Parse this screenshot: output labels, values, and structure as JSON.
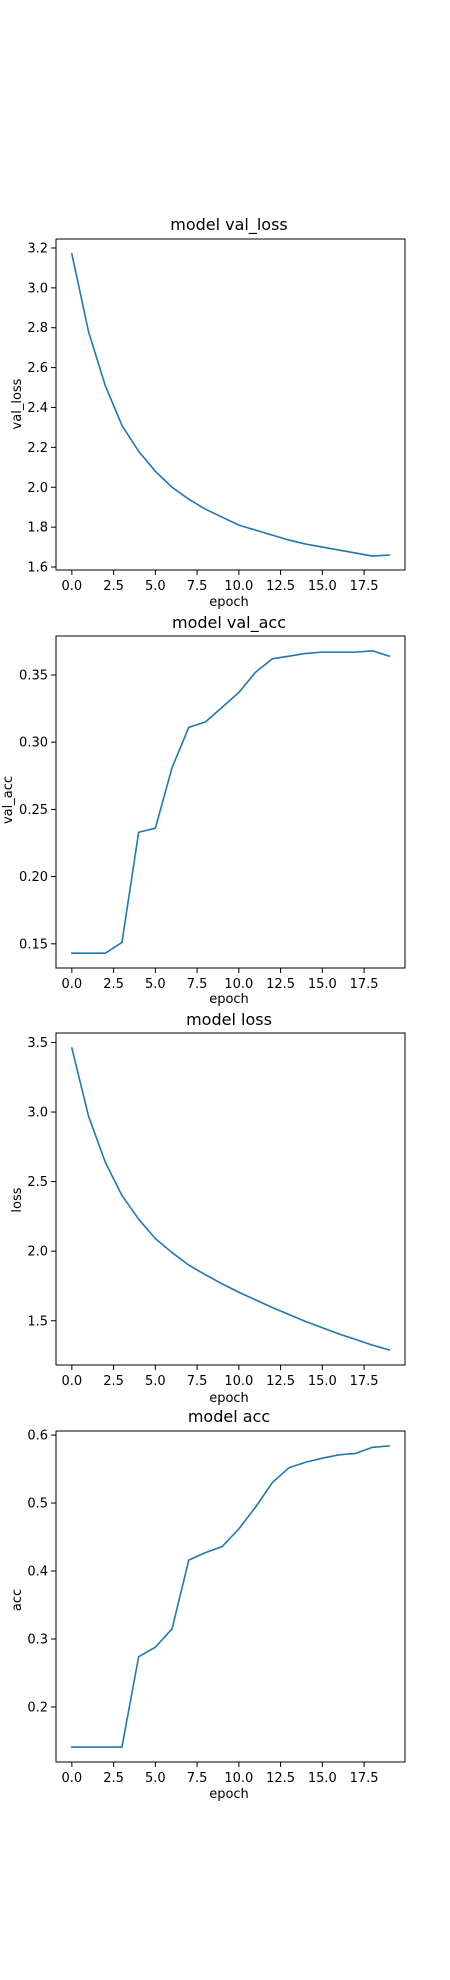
{
  "figure": {
    "background": "#ffffff"
  },
  "chart_data": [
    {
      "type": "line",
      "title": "model val_loss",
      "xlabel": "epoch",
      "ylabel": "val_loss",
      "x": [
        0,
        1,
        2,
        3,
        4,
        5,
        6,
        7,
        8,
        9,
        10,
        11,
        12,
        13,
        14,
        15,
        16,
        17,
        18,
        19
      ],
      "series": [
        {
          "name": "",
          "color": "#1f77b4",
          "values": [
            3.17,
            2.78,
            2.51,
            2.31,
            2.18,
            2.08,
            2.0,
            1.94,
            1.89,
            1.85,
            1.81,
            1.785,
            1.76,
            1.735,
            1.715,
            1.7,
            1.685,
            1.67,
            1.655,
            1.66
          ]
        }
      ],
      "xlim": [
        -0.95,
        19.95
      ],
      "ylim": [
        1.585,
        3.245
      ],
      "xticks": [
        0,
        2.5,
        5,
        7.5,
        10,
        12.5,
        15,
        17.5
      ],
      "xticklabels": [
        "0.0",
        "2.5",
        "5.0",
        "7.5",
        "10.0",
        "12.5",
        "15.0",
        "17.5"
      ],
      "yticks": [
        1.6,
        1.8,
        2.0,
        2.2,
        2.4,
        2.6,
        2.8,
        3.0,
        3.2
      ],
      "yticklabels": [
        "1.6",
        "1.8",
        "2.0",
        "2.2",
        "2.4",
        "2.6",
        "2.8",
        "3.0",
        "3.2"
      ],
      "grid": false,
      "legend": false
    },
    {
      "type": "line",
      "title": "model val_acc",
      "xlabel": "epoch",
      "ylabel": "val_acc",
      "x": [
        0,
        1,
        2,
        3,
        4,
        5,
        6,
        7,
        8,
        9,
        10,
        11,
        12,
        13,
        14,
        15,
        16,
        17,
        18,
        19
      ],
      "series": [
        {
          "name": "",
          "color": "#1f77b4",
          "values": [
            0.143,
            0.143,
            0.143,
            0.151,
            0.233,
            0.236,
            0.281,
            0.311,
            0.315,
            0.326,
            0.337,
            0.352,
            0.362,
            0.364,
            0.366,
            0.367,
            0.367,
            0.367,
            0.368,
            0.364
          ]
        }
      ],
      "xlim": [
        -0.95,
        19.95
      ],
      "ylim": [
        0.132,
        0.379
      ],
      "xticks": [
        0,
        2.5,
        5,
        7.5,
        10,
        12.5,
        15,
        17.5
      ],
      "xticklabels": [
        "0.0",
        "2.5",
        "5.0",
        "7.5",
        "10.0",
        "12.5",
        "15.0",
        "17.5"
      ],
      "yticks": [
        0.15,
        0.2,
        0.25,
        0.3,
        0.35
      ],
      "yticklabels": [
        "0.15",
        "0.20",
        "0.25",
        "0.30",
        "0.35"
      ],
      "grid": false,
      "legend": false
    },
    {
      "type": "line",
      "title": "model loss",
      "xlabel": "epoch",
      "ylabel": "loss",
      "x": [
        0,
        1,
        2,
        3,
        4,
        5,
        6,
        7,
        8,
        9,
        10,
        11,
        12,
        13,
        14,
        15,
        16,
        17,
        18,
        19
      ],
      "series": [
        {
          "name": "",
          "color": "#1f77b4",
          "values": [
            3.46,
            2.97,
            2.64,
            2.4,
            2.23,
            2.09,
            1.99,
            1.9,
            1.83,
            1.765,
            1.705,
            1.65,
            1.595,
            1.545,
            1.495,
            1.45,
            1.405,
            1.365,
            1.325,
            1.29
          ]
        }
      ],
      "xlim": [
        -0.95,
        19.95
      ],
      "ylim": [
        1.182,
        3.568
      ],
      "xticks": [
        0,
        2.5,
        5,
        7.5,
        10,
        12.5,
        15,
        17.5
      ],
      "xticklabels": [
        "0.0",
        "2.5",
        "5.0",
        "7.5",
        "10.0",
        "12.5",
        "15.0",
        "17.5"
      ],
      "yticks": [
        1.5,
        2.0,
        2.5,
        3.0,
        3.5
      ],
      "yticklabels": [
        "1.5",
        "2.0",
        "2.5",
        "3.0",
        "3.5"
      ],
      "grid": false,
      "legend": false
    },
    {
      "type": "line",
      "title": "model acc",
      "xlabel": "epoch",
      "ylabel": "acc",
      "x": [
        0,
        1,
        2,
        3,
        4,
        5,
        6,
        7,
        8,
        9,
        10,
        11,
        12,
        13,
        14,
        15,
        16,
        17,
        18,
        19
      ],
      "series": [
        {
          "name": "",
          "color": "#1f77b4",
          "values": [
            0.141,
            0.141,
            0.141,
            0.141,
            0.274,
            0.288,
            0.315,
            0.416,
            0.427,
            0.436,
            0.462,
            0.494,
            0.53,
            0.552,
            0.56,
            0.566,
            0.571,
            0.573,
            0.582,
            0.584
          ]
        }
      ],
      "xlim": [
        -0.95,
        19.95
      ],
      "ylim": [
        0.119,
        0.606
      ],
      "xticks": [
        0,
        2.5,
        5,
        7.5,
        10,
        12.5,
        15,
        17.5
      ],
      "xticklabels": [
        "0.0",
        "2.5",
        "5.0",
        "7.5",
        "10.0",
        "12.5",
        "15.0",
        "17.5"
      ],
      "yticks": [
        0.2,
        0.3,
        0.4,
        0.5,
        0.6
      ],
      "yticklabels": [
        "0.2",
        "0.3",
        "0.4",
        "0.5",
        "0.6"
      ],
      "grid": false,
      "legend": false
    }
  ]
}
